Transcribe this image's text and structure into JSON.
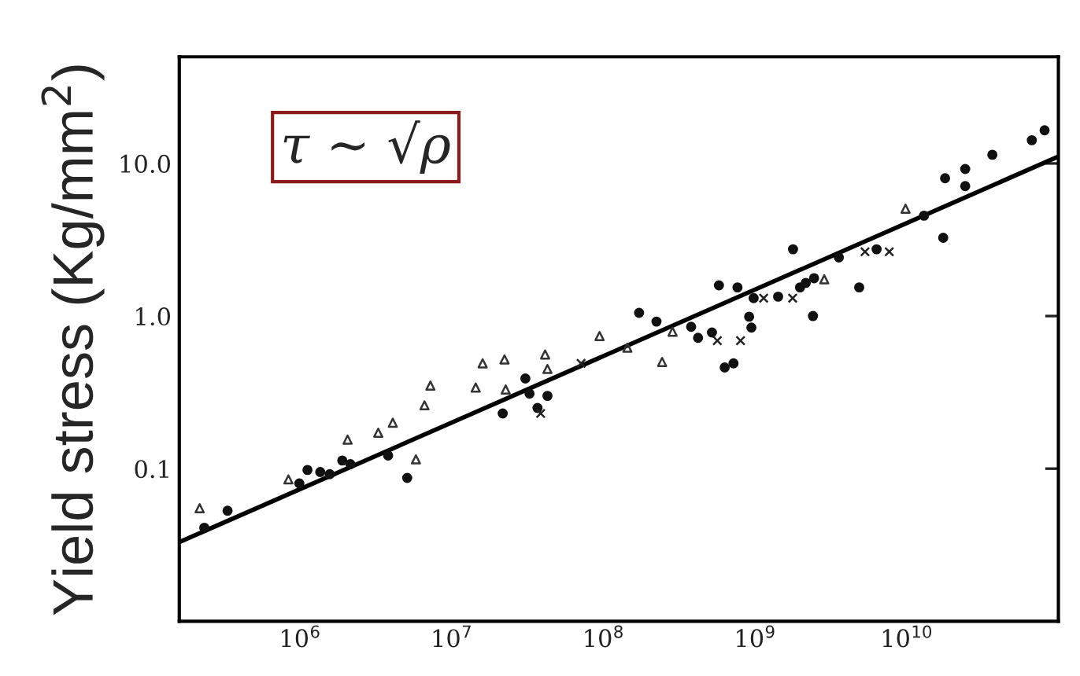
{
  "chart_data": {
    "type": "scatter",
    "ylabel": "Yield stress (Kg/mm$^{2}$)",
    "annotations": [
      "τ ∼ √ρ"
    ],
    "log": "xy",
    "xlim": [
      160000,
      100000000000
    ],
    "ylim": [
      0.01,
      50
    ],
    "xticks": [
      {
        "value": 1000000,
        "label": "10$^{6}$"
      },
      {
        "value": 10000000,
        "label": "10$^{7}$"
      },
      {
        "value": 100000000,
        "label": "10$^{8}$"
      },
      {
        "value": 1000000000,
        "label": "10$^{9}$"
      },
      {
        "value": 10000000000,
        "label": "10$^{10}$"
      }
    ],
    "yticks": [
      {
        "value": 0.1,
        "label": "0.1"
      },
      {
        "value": 1,
        "label": "1.0"
      },
      {
        "value": 10,
        "label": "10.0"
      }
    ],
    "grid": false,
    "legend": false,
    "series": [
      {
        "marker": "circle",
        "color": "#111111",
        "x": [
          333000,
          234000,
          1120000,
          990000,
          1360000,
          1570000,
          1900000,
          2150000,
          3810000,
          5090000,
          21700000,
          30600000,
          32600000,
          36800000,
          42800000,
          172000000,
          224000000,
          379000000,
          421000000,
          520000000,
          631000000,
          721000000,
          578000000,
          766000000,
          914000000,
          946000000,
          979000000,
          1420000000,
          1980000000,
          2160000000,
          2450000000,
          2410000000,
          3570000000,
          4860000000,
          6330000000,
          13000000000,
          17900000000,
          24300000000,
          24300000000,
          36700000000,
          81100000000,
          66800000000,
          1780000000,
          17400000000
        ],
        "values": [
          0.053,
          0.041,
          0.098,
          0.08,
          0.095,
          0.092,
          0.113,
          0.107,
          0.122,
          0.087,
          0.23,
          0.39,
          0.31,
          0.25,
          0.3,
          1.05,
          0.92,
          0.85,
          0.72,
          0.78,
          0.46,
          0.49,
          1.59,
          1.54,
          0.99,
          0.84,
          1.31,
          1.34,
          1.54,
          1.65,
          1.77,
          1.0,
          2.42,
          1.54,
          2.74,
          4.55,
          8.0,
          7.1,
          9.2,
          11.4,
          16.5,
          14.2,
          2.74,
          3.26
        ]
      },
      {
        "marker": "triangle",
        "color": "#333333",
        "x": [
          218000,
          839000,
          2060000,
          3280000,
          4090000,
          6620000,
          7240000,
          16000000,
          22300000,
          14400000,
          22700000,
          41300000,
          42800000,
          94400000,
          144000000,
          286000000,
          244000000,
          9820000000,
          2860000000,
          5810000
        ],
        "values": [
          0.055,
          0.085,
          0.155,
          0.172,
          0.2,
          0.26,
          0.35,
          0.49,
          0.52,
          0.34,
          0.33,
          0.56,
          0.45,
          0.74,
          0.62,
          0.79,
          0.5,
          5.05,
          1.74,
          0.115
        ]
      },
      {
        "marker": "cross",
        "color": "#222222",
        "x": [
          71300000,
          564000000,
          802000000,
          1140000000,
          1770000000,
          5310000000,
          7670000000,
          38600000
        ],
        "values": [
          0.49,
          0.69,
          0.69,
          1.31,
          1.31,
          2.64,
          2.64,
          0.23
        ]
      },
      {
        "type": "line",
        "color": "#000000",
        "line_style": "solid",
        "x": [
          160000,
          100000000000
        ],
        "values": [
          0.033,
          11.1
        ]
      }
    ]
  }
}
